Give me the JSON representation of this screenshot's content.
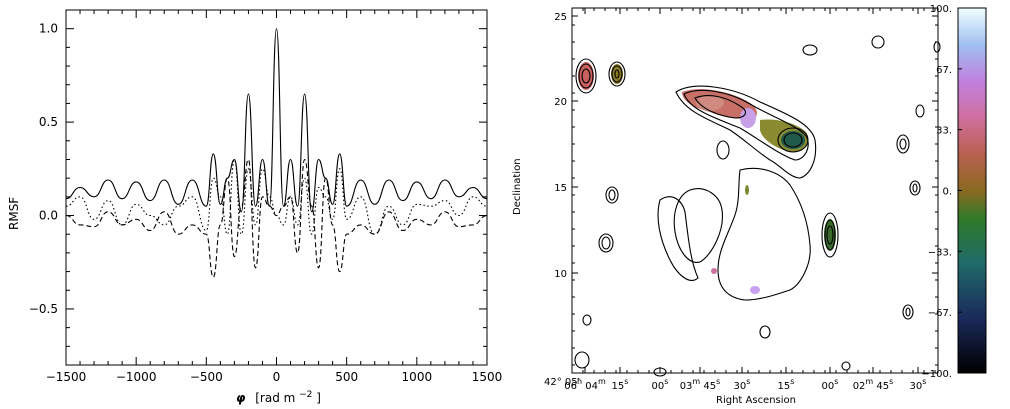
{
  "chart_data": [
    {
      "type": "line",
      "ylabel": "RMSF",
      "xlabel_symbol": "φ",
      "xlabel_text": "[rad m",
      "xlabel_sup": "−2",
      "xlabel_close": "]",
      "xlim": [
        -1500,
        1500
      ],
      "ylim": [
        -0.8,
        1.1
      ],
      "x_ticks": [
        "−1500",
        "−1000",
        "−500",
        "0",
        "500",
        "1000",
        "1500"
      ],
      "y_ticks": [
        "−0.5",
        "0.0",
        "0.5",
        "1.0"
      ],
      "series": [
        {
          "style": "solid",
          "x": [
            -1500,
            -1400,
            -1300,
            -1200,
            -1100,
            -1000,
            -900,
            -800,
            -700,
            -600,
            -500,
            -450,
            -400,
            -350,
            -300,
            -250,
            -200,
            -150,
            -100,
            -50,
            0,
            50,
            100,
            150,
            200,
            250,
            300,
            350,
            400,
            450,
            500,
            600,
            700,
            800,
            900,
            1000,
            1100,
            1200,
            1300,
            1400,
            1500
          ],
          "y": [
            0.09,
            0.15,
            0.1,
            0.19,
            0.09,
            0.18,
            0.08,
            0.19,
            0.06,
            0.19,
            0.05,
            0.33,
            0.06,
            0.2,
            0.3,
            0.02,
            0.65,
            0.05,
            0.3,
            0.05,
            1.0,
            0.05,
            0.3,
            0.05,
            0.65,
            0.02,
            0.3,
            0.2,
            0.06,
            0.33,
            0.05,
            0.19,
            0.06,
            0.19,
            0.08,
            0.18,
            0.09,
            0.19,
            0.1,
            0.15,
            0.09
          ]
        },
        {
          "style": "dotted",
          "x": [
            -1500,
            -1400,
            -1300,
            -1200,
            -1100,
            -1000,
            -900,
            -800,
            -700,
            -600,
            -500,
            -450,
            -400,
            -350,
            -300,
            -250,
            -200,
            -150,
            -100,
            -50,
            0,
            50,
            100,
            150,
            200,
            250,
            300,
            350,
            400,
            450,
            500,
            600,
            700,
            800,
            900,
            1000,
            1100,
            1200,
            1300,
            1400,
            1500
          ],
          "y": [
            0.05,
            0.1,
            -0.02,
            0.08,
            -0.05,
            0.06,
            0.0,
            -0.05,
            0.05,
            0.1,
            -0.08,
            0.2,
            0.1,
            -0.1,
            0.3,
            -0.1,
            0.25,
            -0.05,
            0.25,
            0.1,
            0.0,
            -0.05,
            0.1,
            -0.05,
            0.2,
            -0.1,
            0.15,
            0.1,
            -0.02,
            0.25,
            -0.02,
            0.1,
            -0.1,
            0.05,
            -0.05,
            0.06,
            0.05,
            0.08,
            0.0,
            0.1,
            0.05
          ]
        },
        {
          "style": "dashed",
          "x": [
            -1500,
            -1400,
            -1300,
            -1200,
            -1100,
            -1000,
            -900,
            -800,
            -700,
            -600,
            -500,
            -450,
            -400,
            -350,
            -300,
            -250,
            -200,
            -150,
            -100,
            -50,
            0,
            50,
            100,
            150,
            200,
            250,
            300,
            350,
            400,
            450,
            500,
            600,
            700,
            800,
            900,
            1000,
            1100,
            1200,
            1300,
            1400,
            1500
          ],
          "y": [
            0.0,
            -0.05,
            -0.06,
            0.02,
            -0.05,
            -0.02,
            -0.08,
            0.02,
            -0.1,
            -0.05,
            -0.1,
            -0.33,
            -0.05,
            0.2,
            -0.22,
            0.05,
            0.3,
            -0.28,
            0.1,
            0.05,
            0.0,
            0.05,
            0.1,
            -0.2,
            0.3,
            0.05,
            -0.28,
            0.2,
            -0.05,
            -0.3,
            -0.1,
            -0.05,
            -0.1,
            0.02,
            -0.08,
            -0.02,
            -0.05,
            0.02,
            -0.06,
            -0.05,
            0.0
          ]
        }
      ]
    },
    {
      "type": "heatmap",
      "xlabel": "Right Ascension",
      "ylabel": "Declination",
      "y_ticks": [
        "25",
        "20",
        "15",
        "10"
      ],
      "y_corner": "42° 05′",
      "ra_ticks": [
        {
          "h": "06",
          "hu": "h",
          "m": "04",
          "mu": "m"
        },
        {
          "s": "15",
          "su": "s"
        },
        {
          "s": "00",
          "su": "s"
        },
        {
          "m": "03",
          "mu": "m",
          "s": "45",
          "su": "s"
        },
        {
          "s": "30",
          "su": "s"
        },
        {
          "s": "15",
          "su": "s"
        },
        {
          "s": "00",
          "su": "s"
        },
        {
          "m": "02",
          "mu": "m",
          "s": "45",
          "su": "s"
        },
        {
          "s": "30",
          "su": "s"
        }
      ],
      "colorbar_ticks": [
        "100.",
        "67.",
        "33.",
        "0.",
        "−33.",
        "−67.",
        "−100."
      ],
      "colorbar_range": [
        -100,
        100
      ],
      "colors": {
        "neg_high": "#000000",
        "neg_mid": "#1f5a6a",
        "neg_low": "#2f7a2a",
        "zero": "#8a6a20",
        "pos_low": "#c86050",
        "pos_mid": "#d070c8",
        "pos_high": "#e8ffff"
      }
    }
  ]
}
